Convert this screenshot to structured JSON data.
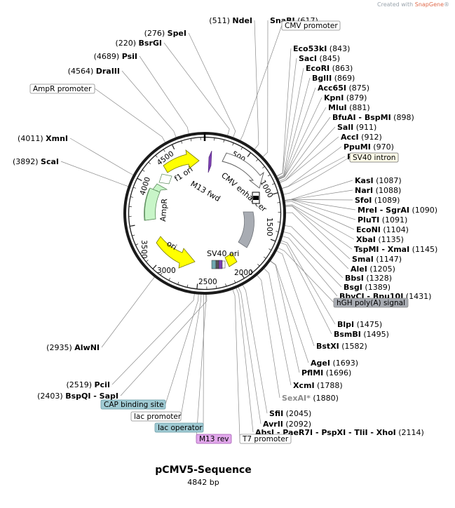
{
  "credit": {
    "prefix": "Created with ",
    "brand": "SnapGene",
    "mark": "®"
  },
  "plasmid": {
    "name": "pCMV5-Sequence",
    "size_text": "4842 bp",
    "length": 4842
  },
  "ticks": [
    "500",
    "1000",
    "1500",
    "2000",
    "2500",
    "3000",
    "3500",
    "4000",
    "4500"
  ],
  "features": [
    {
      "name": "f1 ori",
      "color": "#ffff00"
    },
    {
      "name": "M13 fwd",
      "color": "#7c3fb2"
    },
    {
      "name": "CMV enhancer",
      "color": "#ffffff"
    },
    {
      "name": "AmpR",
      "color": "#c8f5c8"
    },
    {
      "name": "ori",
      "color": "#ffff00"
    },
    {
      "name": "SV40 ori",
      "color": "#ffff00"
    },
    {
      "name": "hGH poly(A) signal",
      "color": "#a8acb3"
    }
  ],
  "sites": [
    {
      "name": "NdeI",
      "pos": "(511)",
      "side": "right"
    },
    {
      "name": "SnaBI",
      "pos": "(617)",
      "side": "left"
    },
    {
      "name": "SpeI",
      "pos": "(276)",
      "side": "right"
    },
    {
      "name": "BsrGI",
      "pos": "(220)",
      "side": "right"
    },
    {
      "name": "PsiI",
      "pos": "(4689)",
      "side": "right"
    },
    {
      "name": "DraIII",
      "pos": "(4564)",
      "side": "right"
    },
    {
      "name": "Eco53kI",
      "pos": "(843)",
      "side": "left"
    },
    {
      "name": "SacI",
      "pos": "(845)",
      "side": "left"
    },
    {
      "name": "EcoRI",
      "pos": "(863)",
      "side": "left"
    },
    {
      "name": "BglII",
      "pos": "(869)",
      "side": "left"
    },
    {
      "name": "Acc65I",
      "pos": "(875)",
      "side": "left"
    },
    {
      "name": "KpnI",
      "pos": "(879)",
      "side": "left"
    },
    {
      "name": "MluI",
      "pos": "(881)",
      "side": "left"
    },
    {
      "name": "BfuAI - BspMI",
      "pos": "(898)",
      "side": "left"
    },
    {
      "name": "SalI",
      "pos": "(911)",
      "side": "left"
    },
    {
      "name": "AccI",
      "pos": "(912)",
      "side": "left"
    },
    {
      "name": "PpuMI",
      "pos": "(970)",
      "side": "left"
    },
    {
      "name": "PfoI",
      "pos": "(972)",
      "side": "left"
    },
    {
      "name": "XmnI",
      "pos": "(4011)",
      "side": "right"
    },
    {
      "name": "ScaI",
      "pos": "(3892)",
      "side": "right"
    },
    {
      "name": "KasI",
      "pos": "(1087)",
      "side": "left"
    },
    {
      "name": "NarI",
      "pos": "(1088)",
      "side": "left"
    },
    {
      "name": "SfoI",
      "pos": "(1089)",
      "side": "left"
    },
    {
      "name": "MreI - SgrAI",
      "pos": "(1090)",
      "side": "left"
    },
    {
      "name": "PluTI",
      "pos": "(1091)",
      "side": "left"
    },
    {
      "name": "EcoNI",
      "pos": "(1104)",
      "side": "left"
    },
    {
      "name": "XbaI",
      "pos": "(1135)",
      "side": "left"
    },
    {
      "name": "TspMI - XmaI",
      "pos": "(1145)",
      "side": "left"
    },
    {
      "name": "SmaI",
      "pos": "(1147)",
      "side": "left"
    },
    {
      "name": "AleI",
      "pos": "(1205)",
      "side": "left"
    },
    {
      "name": "BbsI",
      "pos": "(1328)",
      "side": "left"
    },
    {
      "name": "BsgI",
      "pos": "(1389)",
      "side": "left"
    },
    {
      "name": "BbvCI - Bpu10I",
      "pos": "(1431)",
      "side": "left"
    },
    {
      "name": "BlpI",
      "pos": "(1475)",
      "side": "left"
    },
    {
      "name": "BsmBI",
      "pos": "(1495)",
      "side": "left"
    },
    {
      "name": "BstXI",
      "pos": "(1582)",
      "side": "left"
    },
    {
      "name": "AgeI",
      "pos": "(1693)",
      "side": "left"
    },
    {
      "name": "PflMI",
      "pos": "(1696)",
      "side": "left"
    },
    {
      "name": "XcmI",
      "pos": "(1788)",
      "side": "left"
    },
    {
      "name": "SexAI*",
      "pos": "(1880)",
      "side": "left",
      "gray": true
    },
    {
      "name": "SfiI",
      "pos": "(2045)",
      "side": "left"
    },
    {
      "name": "AvrII",
      "pos": "(2092)",
      "side": "left"
    },
    {
      "name": "AbsI - PaeR7I - PspXI - TliI - XhoI",
      "pos": "(2114)",
      "side": "left"
    },
    {
      "name": "AlwNI",
      "pos": "(2935)",
      "side": "right"
    },
    {
      "name": "PciI",
      "pos": "(2519)",
      "side": "right"
    },
    {
      "name": "BspQI - SapI",
      "pos": "(2403)",
      "side": "right"
    }
  ],
  "boxes": [
    {
      "name": "CMV promoter",
      "fill": "#ffffff",
      "stroke": "#8a8a8a"
    },
    {
      "name": "AmpR promoter",
      "fill": "#ffffff",
      "stroke": "#8a8a8a"
    },
    {
      "name": "SV40 intron",
      "fill": "#fdfbe8",
      "stroke": "#6b6b6b"
    },
    {
      "name": "hGH poly(A) signal",
      "fill": "#a8acb3",
      "stroke": "#8a8a8a"
    },
    {
      "name": "CAP binding site",
      "fill": "#9fcad3",
      "stroke": "#6a9aa4"
    },
    {
      "name": "lac promoter",
      "fill": "#ffffff",
      "stroke": "#8a8a8a"
    },
    {
      "name": "lac operator",
      "fill": "#9fcad3",
      "stroke": "#6a9aa4"
    },
    {
      "name": "M13 rev",
      "fill": "#e2a8ec",
      "stroke": "#a25bb0"
    },
    {
      "name": "T7 promoter",
      "fill": "#ffffff",
      "stroke": "#8a8a8a"
    }
  ]
}
